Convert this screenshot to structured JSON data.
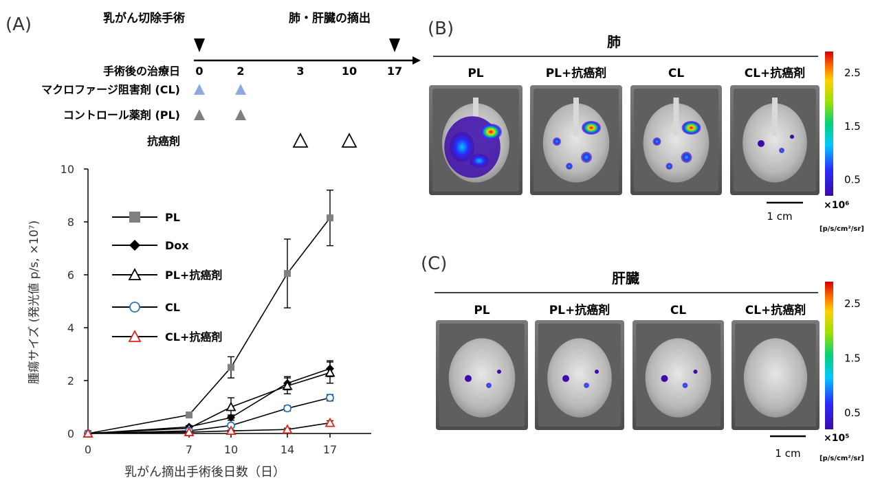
{
  "panels": {
    "a": {
      "label": "(A)"
    },
    "b": {
      "label": "(B)",
      "organ": "肺"
    },
    "c": {
      "label": "(C)",
      "organ": "肝臓"
    }
  },
  "timeline": {
    "surgery_label": "乳がん切除手術",
    "harvest_label": "肺・肝臓の摘出",
    "rows": [
      {
        "label": "手術後の治療日"
      },
      {
        "label": "マクロファージ阻害剤 (CL)"
      },
      {
        "label": "コントロール薬剤 (PL)"
      },
      {
        "label": "抗癌剤"
      }
    ],
    "days": [
      "0",
      "2",
      "3",
      "10",
      "17"
    ],
    "markers": [
      {
        "row": 1,
        "day": "0",
        "shape": "triangle-filled",
        "color": "#8ea9db"
      },
      {
        "row": 1,
        "day": "2",
        "shape": "triangle-filled",
        "color": "#8ea9db"
      },
      {
        "row": 2,
        "day": "0",
        "shape": "triangle-filled",
        "color": "#7f7f7f"
      },
      {
        "row": 2,
        "day": "2",
        "shape": "triangle-filled",
        "color": "#7f7f7f"
      },
      {
        "row": 3,
        "day": "3",
        "shape": "triangle-open",
        "color": "#000000"
      },
      {
        "row": 3,
        "day": "10",
        "shape": "triangle-open",
        "color": "#000000"
      }
    ]
  },
  "chart_data": {
    "type": "line",
    "title": "",
    "xlabel": "乳がん摘出手術後日数（日）",
    "ylabel": "腫瘍サイズ (発光値 p/s, ×10⁷)",
    "x": [
      0,
      7,
      10,
      14,
      17
    ],
    "x_tick_labels": [
      "0",
      "7",
      "10",
      "14",
      "17"
    ],
    "ylim": [
      0,
      10
    ],
    "y_ticks": [
      "0",
      "2",
      "4",
      "6",
      "8",
      "10"
    ],
    "grid": false,
    "legend_position": "left",
    "series": [
      {
        "name": "PL",
        "values": [
          0,
          0.7,
          2.5,
          6.05,
          8.15
        ],
        "err": [
          0,
          0.05,
          0.4,
          1.3,
          1.05
        ],
        "color": "#808080",
        "marker": "square-filled"
      },
      {
        "name": "Dox",
        "values": [
          0,
          0.25,
          0.6,
          1.9,
          2.45
        ],
        "err": [
          0,
          0.05,
          0.1,
          0.25,
          0.3
        ],
        "color": "#000000",
        "marker": "diamond-filled"
      },
      {
        "name": "PL+抗癌剤",
        "values": [
          0,
          0.2,
          1.0,
          1.8,
          2.3
        ],
        "err": [
          0,
          0.05,
          0.35,
          0.3,
          0.4
        ],
        "color": "#000000",
        "marker": "triangle-open"
      },
      {
        "name": "CL",
        "values": [
          0,
          0.1,
          0.3,
          0.95,
          1.35
        ],
        "err": [
          0,
          0.03,
          0.05,
          0.1,
          0.12
        ],
        "color": "#2e75b6",
        "marker": "circle-open"
      },
      {
        "name": "CL+抗癌剤",
        "values": [
          0,
          0.05,
          0.1,
          0.15,
          0.4
        ],
        "err": [
          0,
          0.02,
          0.03,
          0.05,
          0.08
        ],
        "color": "#e32119",
        "marker": "triangle-open"
      }
    ]
  },
  "imaging": {
    "lung": {
      "groups": [
        "PL",
        "PL+抗癌剤",
        "CL",
        "CL+抗癌剤"
      ],
      "colorbar_ticks": [
        "2.5",
        "1.5",
        "0.5"
      ],
      "unit": "×10⁶",
      "unit_sub": "[p/s/cm²/sr]",
      "scale_bar": "1 cm",
      "signal_levels": [
        0.9,
        0.3,
        0.25,
        0.05
      ]
    },
    "liver": {
      "groups": [
        "PL",
        "PL+抗癌剤",
        "CL",
        "CL+抗癌剤"
      ],
      "colorbar_ticks": [
        "2.5",
        "1.5",
        "0.5"
      ],
      "unit": "×10⁵",
      "unit_sub": "[p/s/cm²/sr]",
      "scale_bar": "1 cm",
      "signal_levels": [
        0.1,
        0.05,
        0.02,
        0
      ]
    }
  }
}
